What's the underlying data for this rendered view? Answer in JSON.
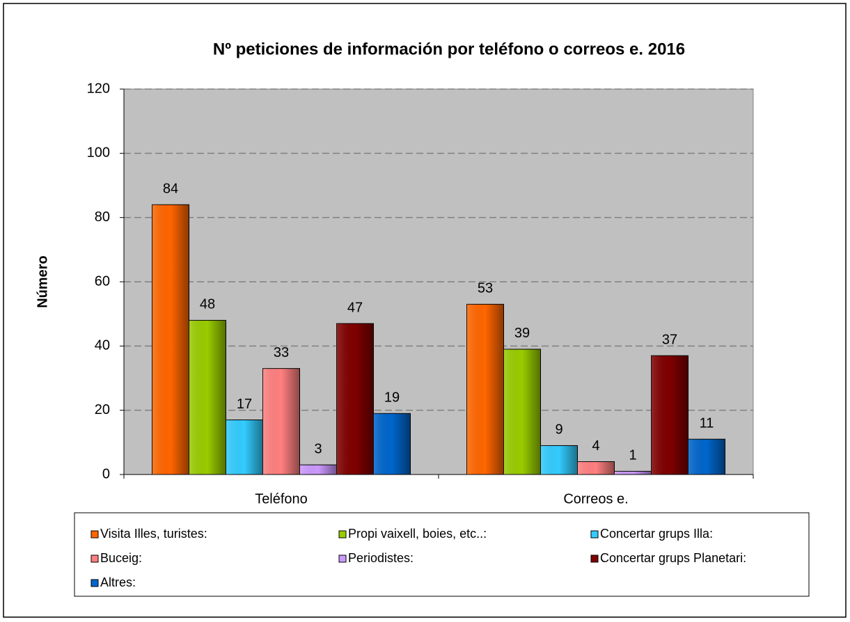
{
  "chart_data": {
    "type": "bar",
    "title": "Nº peticiones de información por teléfono o correos e. 2016",
    "y_label": "Número",
    "categories": [
      "Teléfono",
      "Correos e."
    ],
    "series": [
      {
        "name": "Visita Illes, turistes:",
        "color": "#ff6600",
        "values": [
          84,
          53
        ]
      },
      {
        "name": "Propi vaixell, boies, etc..:",
        "color": "#99cc00",
        "values": [
          48,
          39
        ]
      },
      {
        "name": "Concertar grups Illa:",
        "color": "#33ccff",
        "values": [
          17,
          9
        ]
      },
      {
        "name": "Buceig:",
        "color": "#ff8080",
        "values": [
          33,
          4
        ]
      },
      {
        "name": "Periodistes:",
        "color": "#cc99ff",
        "values": [
          3,
          1
        ]
      },
      {
        "name": "Concertar grups Planetari:",
        "color": "#800000",
        "values": [
          47,
          37
        ]
      },
      {
        "name": "Altres:",
        "color": "#0066cc",
        "values": [
          19,
          11
        ]
      }
    ],
    "ylim": [
      0,
      120
    ],
    "yticks": [
      0,
      20,
      40,
      60,
      80,
      100,
      120
    ],
    "grid": true,
    "legend": "bottom"
  }
}
